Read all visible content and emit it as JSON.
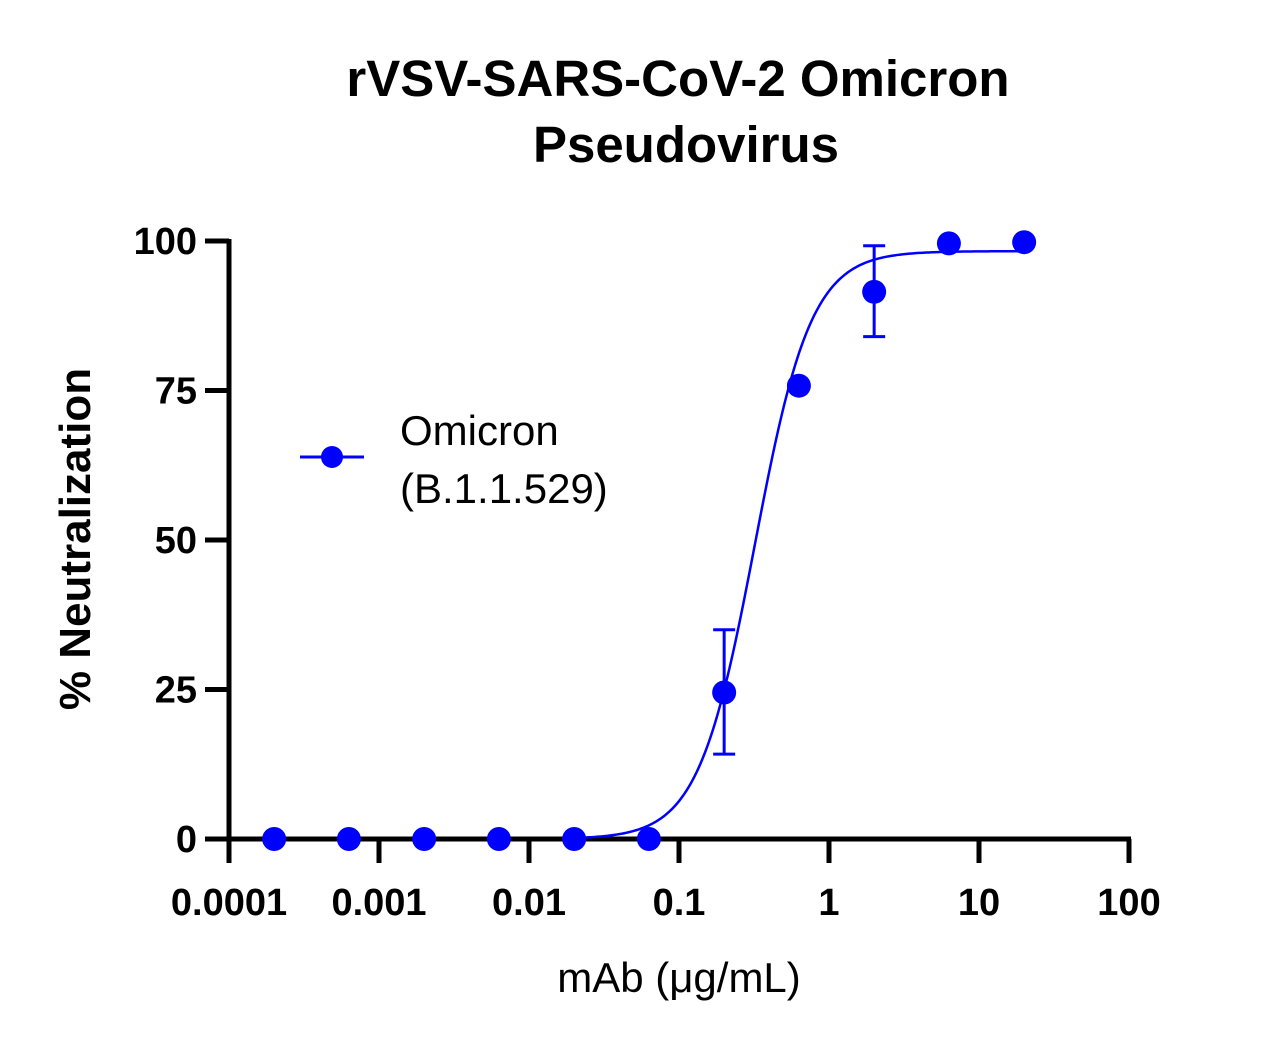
{
  "chart_data": {
    "type": "scatter",
    "title_lines": [
      "rVSV-SARS-CoV-2 Omicron",
      "Pseudovirus"
    ],
    "xlabel": "mAb (μg/mL)",
    "ylabel": "% Neutralization",
    "xscale": "log",
    "xlim": [
      0.0001,
      100
    ],
    "ylim": [
      0,
      100
    ],
    "x_ticks": [
      {
        "value": 0.0001,
        "label": "0.0001"
      },
      {
        "value": 0.001,
        "label": "0.001"
      },
      {
        "value": 0.01,
        "label": "0.01"
      },
      {
        "value": 0.1,
        "label": "0.1"
      },
      {
        "value": 1,
        "label": "1"
      },
      {
        "value": 10,
        "label": "10"
      },
      {
        "value": 100,
        "label": "100"
      }
    ],
    "y_ticks": [
      {
        "value": 0,
        "label": "0"
      },
      {
        "value": 25,
        "label": "25"
      },
      {
        "value": 50,
        "label": "50"
      },
      {
        "value": 75,
        "label": "75"
      },
      {
        "value": 100,
        "label": "100"
      }
    ],
    "grid": false,
    "legend_position": "upper-left",
    "series": [
      {
        "name_lines": [
          "Omicron",
          "(B.1.1.529)"
        ],
        "color": "#0000FF",
        "points": [
          {
            "x": 0.0002,
            "y": 0
          },
          {
            "x": 0.00063,
            "y": 0
          },
          {
            "x": 0.002,
            "y": 0
          },
          {
            "x": 0.0063,
            "y": 0
          },
          {
            "x": 0.02,
            "y": 0
          },
          {
            "x": 0.063,
            "y": 0
          },
          {
            "x": 0.2,
            "y": 24.5,
            "err_low": 14.2,
            "err_high": 35
          },
          {
            "x": 0.63,
            "y": 75.8
          },
          {
            "x": 2,
            "y": 91.5,
            "err_low": 84,
            "err_high": 99.2
          },
          {
            "x": 6.3,
            "y": 99.6
          },
          {
            "x": 20,
            "y": 99.8
          }
        ],
        "fit": {
          "model": "four-parameter logistic",
          "bottom": 0,
          "top": 98.3,
          "ec50": 0.32,
          "hill_slope": 2.3,
          "x_range": [
            0.02,
            20
          ]
        }
      }
    ]
  }
}
